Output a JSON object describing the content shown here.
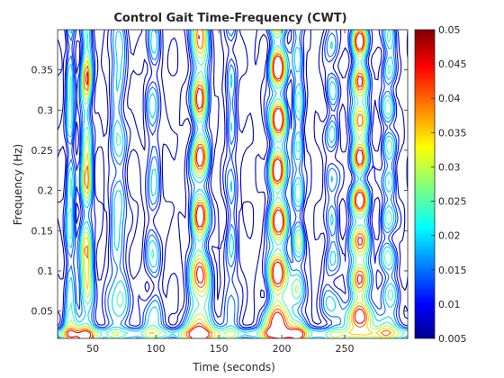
{
  "chart_data": {
    "type": "heatmap",
    "subtype": "contour",
    "title": "Control Gait Time-Frequency (CWT)",
    "xlabel": "Time (seconds)",
    "ylabel": "Frequency (Hz)",
    "xlim": [
      22,
      300
    ],
    "ylim": [
      0.016,
      0.4
    ],
    "x_ticks": [
      50,
      100,
      150,
      200,
      250
    ],
    "y_ticks": [
      0.05,
      0.1,
      0.15,
      0.2,
      0.25,
      0.3,
      0.35
    ],
    "colorbar": {
      "colormap": "jet",
      "range": [
        0.005,
        0.05
      ],
      "ticks": [
        0.005,
        0.01,
        0.015,
        0.02,
        0.025,
        0.03,
        0.035,
        0.04,
        0.045,
        0.05
      ]
    },
    "contour_levels": [
      0.007,
      0.01,
      0.013,
      0.016,
      0.02,
      0.025,
      0.03,
      0.035,
      0.04,
      0.045
    ],
    "ridges": [
      {
        "time": 32,
        "width": 3,
        "amplitude": 0.025
      },
      {
        "time": 45,
        "width": 4,
        "amplitude": 0.038
      },
      {
        "time": 70,
        "width": 6,
        "amplitude": 0.02
      },
      {
        "time": 98,
        "width": 5,
        "amplitude": 0.016
      },
      {
        "time": 135,
        "width": 6,
        "amplitude": 0.044
      },
      {
        "time": 160,
        "width": 4,
        "amplitude": 0.016
      },
      {
        "time": 197,
        "width": 6,
        "amplitude": 0.05
      },
      {
        "time": 213,
        "width": 4,
        "amplitude": 0.024
      },
      {
        "time": 240,
        "width": 5,
        "amplitude": 0.016
      },
      {
        "time": 262,
        "width": 6,
        "amplitude": 0.045
      },
      {
        "time": 285,
        "width": 5,
        "amplitude": 0.022
      }
    ]
  }
}
